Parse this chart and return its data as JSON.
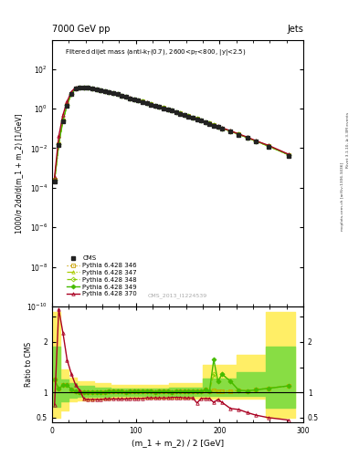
{
  "title_top": "7000 GeV pp",
  "title_right": "Jets",
  "plot_title_main": "Filtered dijet mass ",
  "plot_title_sub": "(anti-k_{T}(0.7), 2600<p_{T}<800, |y|<2.5)",
  "xlabel": "(m_1 + m_2) / 2 [GeV]",
  "ylabel_main": "1000/σ 2dσ/d(m_1 + m_2) [1/GeV]",
  "ylabel_ratio": "Ratio to CMS",
  "watermark": "CMS_2013_I1224539",
  "side_text1": "Rivet 3.1.10, ≥ 3.3M events",
  "side_text2": "mcplots.cern.ch [arXiv:1306.3436]",
  "xlim": [
    0,
    300
  ],
  "ylim_main": [
    1e-10,
    3000.0
  ],
  "ylim_ratio": [
    0.4,
    2.7
  ],
  "x_data": [
    3.0,
    8.0,
    13.0,
    18.0,
    23.0,
    28.0,
    33.0,
    38.0,
    43.0,
    48.0,
    53.0,
    58.0,
    63.0,
    68.0,
    73.0,
    78.0,
    83.0,
    88.0,
    93.0,
    98.0,
    103.0,
    108.0,
    113.0,
    118.0,
    123.0,
    128.0,
    133.0,
    138.0,
    143.0,
    148.0,
    153.0,
    158.0,
    163.0,
    168.0,
    173.0,
    178.0,
    183.0,
    188.0,
    193.0,
    198.0,
    203.0,
    213.0,
    223.0,
    233.0,
    243.0,
    258.0,
    283.0
  ],
  "cms_y": [
    0.0002,
    0.015,
    0.22,
    1.4,
    5.2,
    10.0,
    11.5,
    11.5,
    11.0,
    10.5,
    9.5,
    8.5,
    7.5,
    6.5,
    6.0,
    5.2,
    4.5,
    3.9,
    3.3,
    2.9,
    2.5,
    2.2,
    1.9,
    1.6,
    1.4,
    1.2,
    1.05,
    0.9,
    0.77,
    0.65,
    0.55,
    0.47,
    0.4,
    0.34,
    0.29,
    0.245,
    0.2,
    0.17,
    0.14,
    0.12,
    0.1,
    0.07,
    0.048,
    0.033,
    0.022,
    0.012,
    0.004
  ],
  "p346_y": [
    0.00025,
    0.016,
    0.25,
    1.6,
    5.5,
    10.2,
    11.6,
    11.6,
    11.1,
    10.6,
    9.6,
    8.6,
    7.6,
    6.6,
    6.1,
    5.3,
    4.6,
    3.95,
    3.35,
    2.95,
    2.55,
    2.25,
    1.95,
    1.65,
    1.42,
    1.22,
    1.07,
    0.92,
    0.78,
    0.66,
    0.56,
    0.48,
    0.41,
    0.35,
    0.3,
    0.25,
    0.21,
    0.175,
    0.145,
    0.123,
    0.102,
    0.072,
    0.05,
    0.034,
    0.023,
    0.013,
    0.0045
  ],
  "p347_y": [
    0.00025,
    0.016,
    0.25,
    1.6,
    5.5,
    10.2,
    11.6,
    11.6,
    11.1,
    10.6,
    9.6,
    8.6,
    7.6,
    6.6,
    6.1,
    5.3,
    4.6,
    3.95,
    3.35,
    2.95,
    2.55,
    2.25,
    1.95,
    1.65,
    1.42,
    1.22,
    1.07,
    0.92,
    0.78,
    0.66,
    0.56,
    0.48,
    0.41,
    0.35,
    0.3,
    0.25,
    0.21,
    0.175,
    0.145,
    0.123,
    0.102,
    0.072,
    0.05,
    0.034,
    0.023,
    0.013,
    0.0045
  ],
  "p348_y": [
    0.00025,
    0.016,
    0.25,
    1.6,
    5.5,
    10.2,
    11.6,
    11.6,
    11.1,
    10.6,
    9.6,
    8.6,
    7.6,
    6.6,
    6.1,
    5.3,
    4.6,
    3.95,
    3.35,
    2.95,
    2.55,
    2.25,
    1.95,
    1.65,
    1.42,
    1.22,
    1.07,
    0.92,
    0.78,
    0.66,
    0.56,
    0.48,
    0.41,
    0.35,
    0.3,
    0.25,
    0.21,
    0.175,
    0.145,
    0.123,
    0.102,
    0.072,
    0.05,
    0.034,
    0.023,
    0.013,
    0.0045
  ],
  "p349_y": [
    0.00025,
    0.016,
    0.25,
    1.6,
    5.5,
    10.2,
    11.6,
    11.6,
    11.1,
    10.6,
    9.6,
    8.6,
    7.6,
    6.6,
    6.1,
    5.3,
    4.6,
    3.95,
    3.35,
    2.95,
    2.55,
    2.25,
    1.95,
    1.65,
    1.42,
    1.22,
    1.07,
    0.92,
    0.78,
    0.66,
    0.56,
    0.48,
    0.41,
    0.35,
    0.3,
    0.25,
    0.21,
    0.175,
    0.145,
    0.123,
    0.102,
    0.072,
    0.05,
    0.034,
    0.023,
    0.013,
    0.0045
  ],
  "p370_y": [
    0.00035,
    0.04,
    0.48,
    2.3,
    7.1,
    11.5,
    12.0,
    11.8,
    11.2,
    10.7,
    9.7,
    8.7,
    7.7,
    6.7,
    6.15,
    5.35,
    4.65,
    4.0,
    3.4,
    3.0,
    2.6,
    2.3,
    2.0,
    1.7,
    1.45,
    1.25,
    1.09,
    0.94,
    0.8,
    0.68,
    0.57,
    0.49,
    0.42,
    0.36,
    0.31,
    0.26,
    0.215,
    0.18,
    0.15,
    0.127,
    0.106,
    0.075,
    0.052,
    0.036,
    0.024,
    0.014,
    0.0048
  ],
  "ratio_x": [
    3.0,
    8.0,
    13.0,
    18.0,
    23.0,
    28.0,
    33.0,
    38.0,
    43.0,
    48.0,
    53.0,
    58.0,
    63.0,
    68.0,
    73.0,
    78.0,
    83.0,
    88.0,
    93.0,
    98.0,
    103.0,
    108.0,
    113.0,
    118.0,
    123.0,
    128.0,
    133.0,
    138.0,
    143.0,
    148.0,
    153.0,
    158.0,
    163.0,
    168.0,
    173.0,
    178.0,
    183.0,
    188.0,
    193.0,
    198.0,
    203.0,
    213.0,
    223.0,
    233.0,
    243.0,
    258.0,
    283.0
  ],
  "r346": [
    1.25,
    1.07,
    1.14,
    1.14,
    1.06,
    1.02,
    1.01,
    1.01,
    1.01,
    1.01,
    1.01,
    1.01,
    1.01,
    1.02,
    1.02,
    1.02,
    1.02,
    1.01,
    1.02,
    1.02,
    1.02,
    1.02,
    1.03,
    1.03,
    1.01,
    1.02,
    1.02,
    1.02,
    1.01,
    1.02,
    1.02,
    1.02,
    1.03,
    1.03,
    1.03,
    1.02,
    1.05,
    1.03,
    1.04,
    1.03,
    1.02,
    1.03,
    1.04,
    1.03,
    1.05,
    1.08,
    1.13
  ],
  "r347": [
    1.25,
    1.07,
    1.14,
    1.14,
    1.06,
    1.02,
    1.01,
    1.01,
    1.01,
    1.01,
    1.01,
    1.01,
    1.01,
    1.02,
    1.02,
    1.02,
    1.02,
    1.01,
    1.02,
    1.02,
    1.02,
    1.02,
    1.03,
    1.03,
    1.01,
    1.02,
    1.02,
    1.02,
    1.01,
    1.02,
    1.02,
    1.02,
    1.03,
    1.03,
    1.03,
    1.02,
    1.05,
    1.03,
    1.05,
    1.03,
    1.02,
    1.03,
    1.04,
    1.03,
    1.05,
    1.08,
    1.13
  ],
  "r348": [
    1.25,
    1.07,
    1.14,
    1.14,
    1.06,
    1.02,
    1.01,
    1.01,
    1.01,
    1.01,
    1.01,
    1.01,
    1.01,
    1.02,
    1.02,
    1.02,
    1.02,
    1.01,
    1.02,
    1.02,
    1.02,
    1.02,
    1.03,
    1.03,
    1.01,
    1.02,
    1.02,
    1.02,
    1.01,
    1.02,
    1.02,
    1.02,
    1.03,
    1.03,
    1.03,
    1.02,
    1.05,
    1.03,
    1.36,
    1.22,
    1.36,
    1.22,
    1.04,
    1.03,
    1.05,
    1.08,
    1.13
  ],
  "r349": [
    1.25,
    1.07,
    1.14,
    1.14,
    1.06,
    1.02,
    1.01,
    1.01,
    1.01,
    1.01,
    1.01,
    1.01,
    1.01,
    1.02,
    1.02,
    1.02,
    1.02,
    1.01,
    1.02,
    1.02,
    1.02,
    1.02,
    1.03,
    1.03,
    1.01,
    1.02,
    1.02,
    1.02,
    1.01,
    1.02,
    1.02,
    1.02,
    1.03,
    1.03,
    1.03,
    1.02,
    1.05,
    1.03,
    1.65,
    1.22,
    1.36,
    1.22,
    1.04,
    1.03,
    1.05,
    1.08,
    1.13
  ],
  "r370": [
    0.75,
    2.65,
    2.18,
    1.64,
    1.37,
    1.15,
    1.04,
    0.87,
    0.86,
    0.86,
    0.86,
    0.86,
    0.87,
    0.87,
    0.87,
    0.87,
    0.87,
    0.87,
    0.88,
    0.88,
    0.88,
    0.88,
    0.89,
    0.89,
    0.89,
    0.89,
    0.89,
    0.89,
    0.9,
    0.9,
    0.9,
    0.89,
    0.89,
    0.89,
    0.79,
    0.88,
    0.88,
    0.88,
    0.8,
    0.86,
    0.8,
    0.68,
    0.66,
    0.6,
    0.55,
    0.5,
    0.45
  ],
  "band_x": [
    0,
    5,
    10,
    20,
    30,
    50,
    70,
    100,
    140,
    180,
    220,
    255,
    270,
    290
  ],
  "band_green_lo": [
    0.72,
    0.72,
    0.82,
    0.9,
    0.91,
    0.92,
    0.93,
    0.93,
    0.93,
    0.93,
    0.93,
    0.7,
    0.7,
    0.7
  ],
  "band_green_hi": [
    1.9,
    1.9,
    1.25,
    1.18,
    1.13,
    1.1,
    1.08,
    1.08,
    1.1,
    1.28,
    1.4,
    1.9,
    1.9,
    1.9
  ],
  "band_yellow_lo": [
    0.5,
    0.5,
    0.65,
    0.82,
    0.84,
    0.86,
    0.88,
    0.88,
    0.88,
    0.88,
    0.88,
    0.5,
    0.5,
    0.5
  ],
  "band_yellow_hi": [
    2.6,
    2.6,
    1.45,
    1.3,
    1.22,
    1.18,
    1.15,
    1.15,
    1.18,
    1.55,
    1.75,
    2.6,
    2.6,
    2.6
  ],
  "color_346": "#c8a000",
  "color_347": "#aacc00",
  "color_348": "#88cc00",
  "color_349": "#44bb00",
  "color_370": "#aa0022",
  "color_cms": "#222222",
  "bg_color": "#ffffff"
}
